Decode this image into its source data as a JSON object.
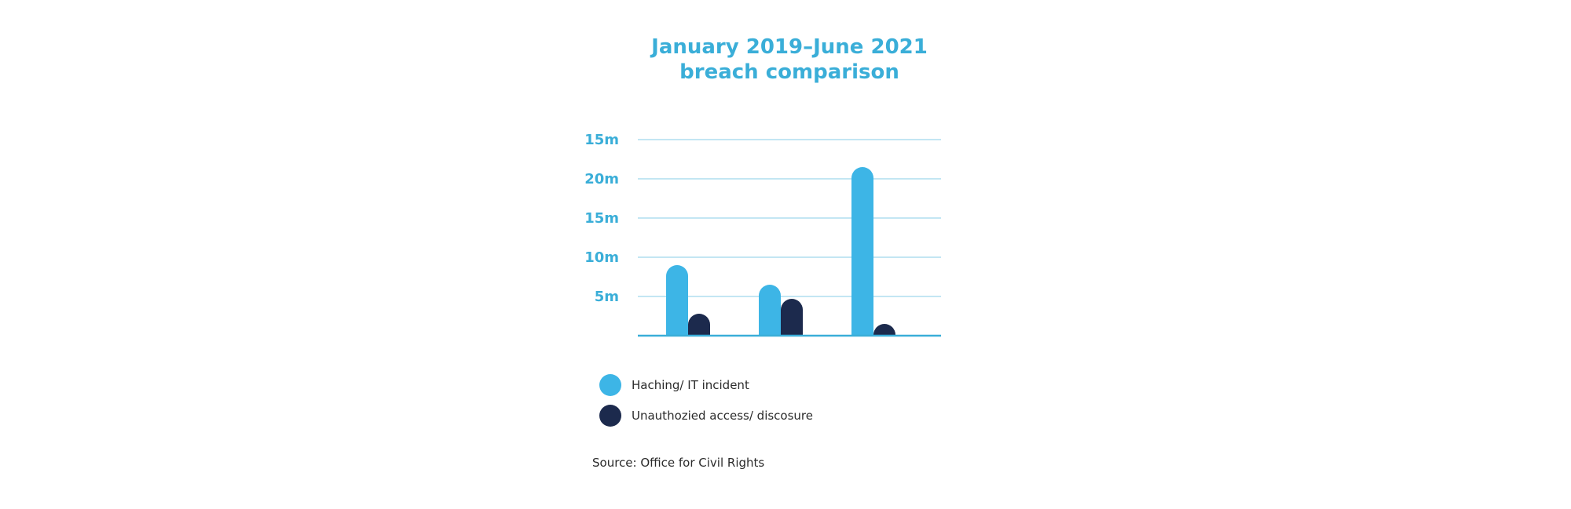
{
  "chart_data": {
    "type": "bar",
    "title_lines": [
      "January 2019–June 2021",
      "breach comparison"
    ],
    "y_tick_labels": [
      "15m",
      "20m",
      "15m",
      "10m",
      "5m"
    ],
    "ylim": [
      0,
      25
    ],
    "grid": true,
    "categories": [
      "",
      "",
      ""
    ],
    "series": [
      {
        "name": "Haching/ IT incident",
        "color": "#3db5e6",
        "values": [
          9,
          6.5,
          21.5
        ]
      },
      {
        "name": "Unauthozied access/ discosure",
        "color": "#1c2a4d",
        "values": [
          2.8,
          4.7,
          1.5
        ]
      }
    ],
    "legend_position": "bottom-left",
    "axis_color": "#3aaed8",
    "grid_color": "#9fd6ec"
  },
  "source": "Source: Office for Civil Rights"
}
